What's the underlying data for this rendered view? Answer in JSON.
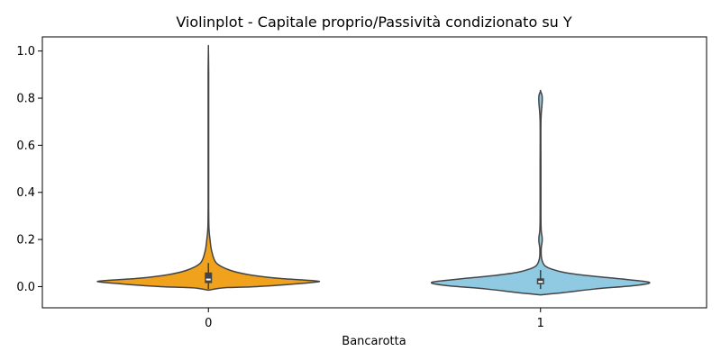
{
  "chart_data": {
    "type": "violin",
    "title": "Violinplot - Capitale proprio/Passività condizionato su Y",
    "xlabel": "Bancarotta",
    "ylabel": "",
    "categories": [
      "0",
      "1"
    ],
    "ylim": [
      -0.09,
      1.06
    ],
    "yticks": [
      0.0,
      0.2,
      0.4,
      0.6,
      0.8,
      1.0
    ],
    "ytick_labels": [
      "0.0",
      "0.2",
      "0.4",
      "0.6",
      "0.8",
      "1.0"
    ],
    "grid": false,
    "series": [
      {
        "category": "0",
        "color": "#f0a21c",
        "density_profile": [
          [
            -0.015,
            0.0
          ],
          [
            -0.005,
            0.12
          ],
          [
            0.0,
            0.36
          ],
          [
            0.01,
            0.62
          ],
          [
            0.02,
            0.82
          ],
          [
            0.025,
            0.79
          ],
          [
            0.035,
            0.53
          ],
          [
            0.05,
            0.31
          ],
          [
            0.07,
            0.16
          ],
          [
            0.1,
            0.06
          ],
          [
            0.15,
            0.025
          ],
          [
            0.2,
            0.012
          ],
          [
            0.25,
            0.004
          ],
          [
            0.35,
            0.002
          ],
          [
            0.5,
            0.002
          ],
          [
            0.7,
            0.002
          ],
          [
            0.9,
            0.002
          ],
          [
            1.01,
            0.0
          ]
        ],
        "box": {
          "q1": 0.015,
          "median": 0.03,
          "q3": 0.06,
          "whisker_low": -0.01,
          "whisker_high": 0.1
        }
      },
      {
        "category": "1",
        "color": "#8fcae2",
        "density_profile": [
          [
            -0.035,
            0.0
          ],
          [
            -0.025,
            0.18
          ],
          [
            -0.01,
            0.41
          ],
          [
            0.005,
            0.72
          ],
          [
            0.018,
            0.82
          ],
          [
            0.03,
            0.65
          ],
          [
            0.045,
            0.38
          ],
          [
            0.06,
            0.18
          ],
          [
            0.075,
            0.08
          ],
          [
            0.09,
            0.03
          ],
          [
            0.12,
            0.008
          ],
          [
            0.16,
            0.005
          ],
          [
            0.19,
            0.012
          ],
          [
            0.21,
            0.012
          ],
          [
            0.24,
            0.005
          ],
          [
            0.3,
            0.003
          ],
          [
            0.5,
            0.003
          ],
          [
            0.7,
            0.003
          ],
          [
            0.78,
            0.012
          ],
          [
            0.81,
            0.012
          ],
          [
            0.83,
            0.0
          ]
        ],
        "box": {
          "q1": 0.01,
          "median": 0.02,
          "q3": 0.035,
          "whisker_low": -0.01,
          "whisker_high": 0.07
        }
      }
    ]
  }
}
